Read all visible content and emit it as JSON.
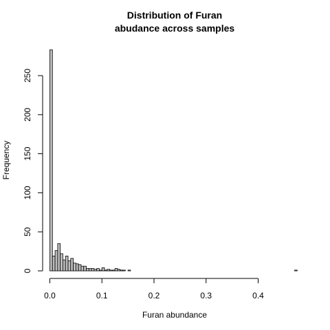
{
  "chart_data": {
    "type": "bar",
    "title_lines": [
      "Distribution of Furan",
      "abudance across samples"
    ],
    "xlabel": "Furan abundance",
    "ylabel": "Frequency",
    "bin_width": 0.005,
    "x_start": 0.0,
    "xlim": [
      0,
      0.475
    ],
    "ylim": [
      0,
      285
    ],
    "x_ticks": [
      0.0,
      0.1,
      0.2,
      0.3,
      0.4
    ],
    "x_tick_labels": [
      "0.0",
      "0.1",
      "0.2",
      "0.3",
      "0.4"
    ],
    "y_ticks": [
      0,
      50,
      100,
      150,
      200,
      250
    ],
    "y_tick_labels": [
      "0",
      "50",
      "100",
      "150",
      "200",
      "250"
    ],
    "values": [
      283,
      19,
      26,
      35,
      22,
      14,
      19,
      13,
      16,
      10,
      9,
      8,
      6,
      6,
      3,
      3,
      3,
      2,
      3,
      1,
      4,
      1,
      2,
      1,
      1,
      3,
      2,
      1,
      1,
      0,
      1,
      0,
      0,
      0,
      0,
      0,
      0,
      0,
      0,
      0,
      0,
      0,
      0,
      0,
      0,
      0,
      0,
      0,
      0,
      0,
      0,
      0,
      0,
      0,
      0,
      0,
      0,
      0,
      0,
      0,
      0,
      0,
      0,
      0,
      0,
      0,
      0,
      0,
      0,
      0,
      0,
      0,
      0,
      0,
      0,
      0,
      0,
      0,
      0,
      0,
      0,
      0,
      0,
      0,
      0,
      0,
      0,
      0,
      0,
      0,
      0,
      0,
      0,
      0,
      1
    ]
  }
}
